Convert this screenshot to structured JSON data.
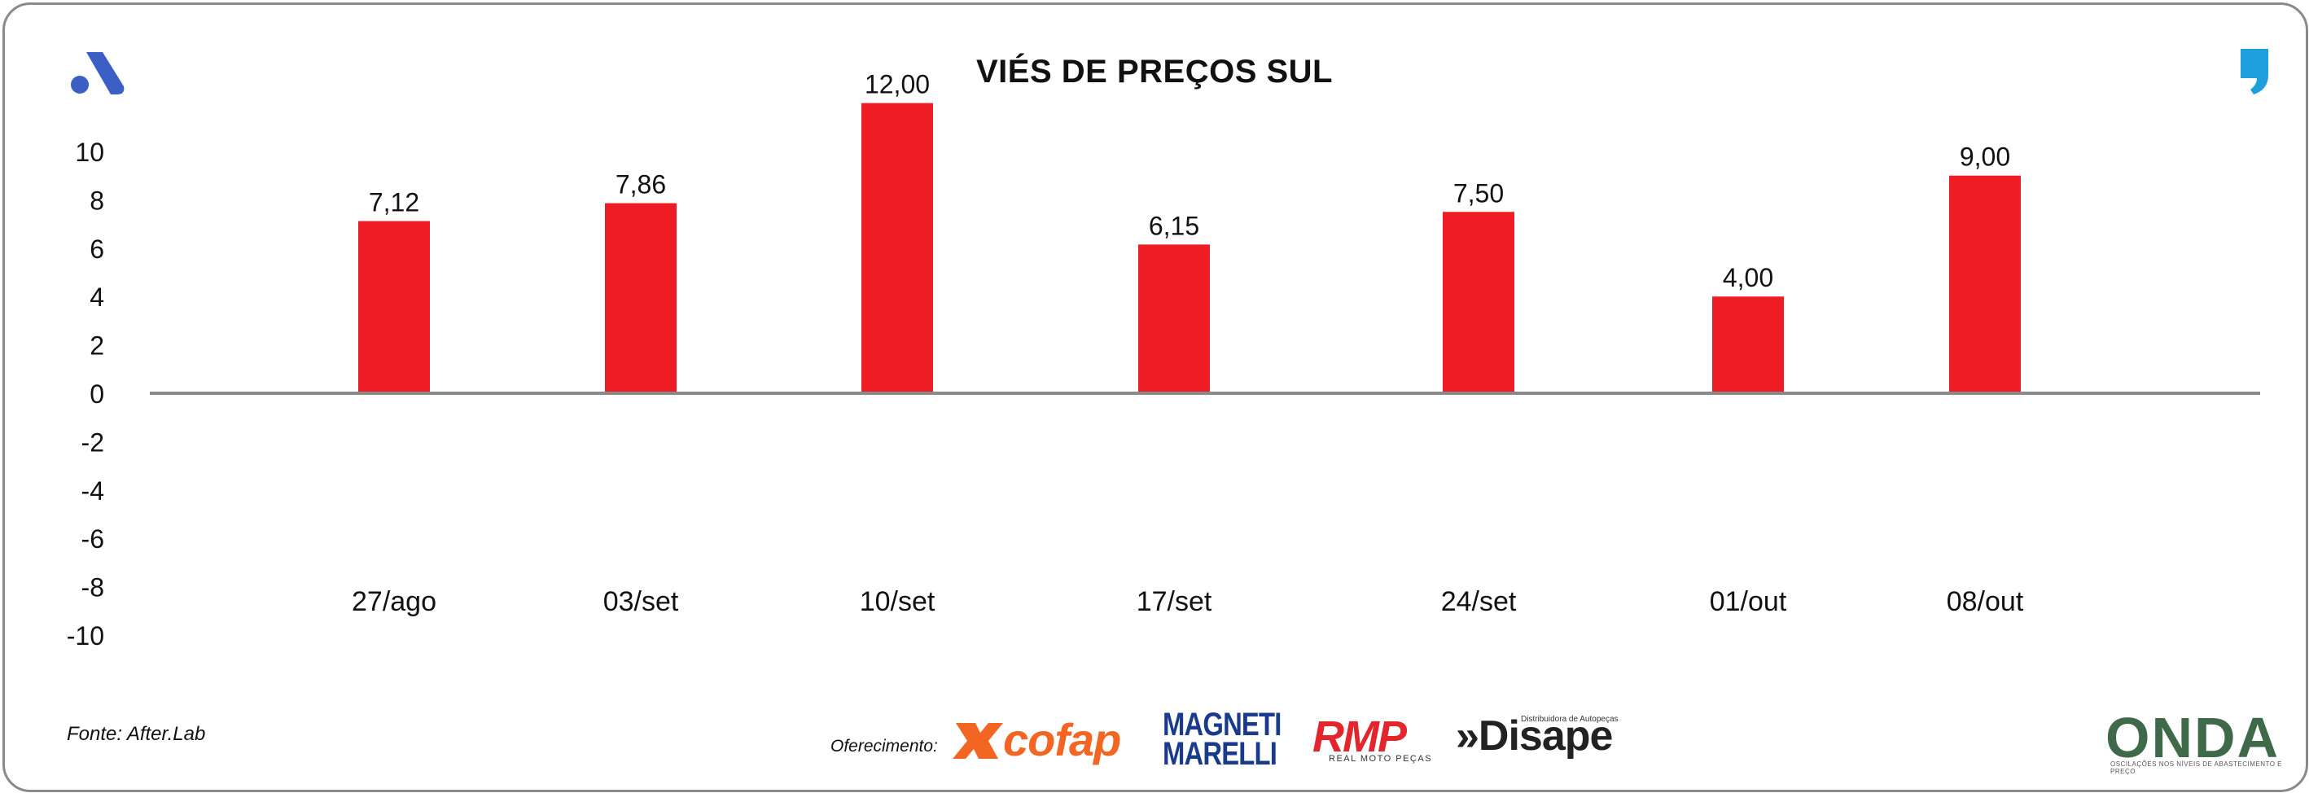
{
  "brand": {
    "left_logo_icon": "a-letter-logo-icon",
    "right_logo_icon": "comma-logo-icon",
    "left_logo_color": "#3b5fc4",
    "right_logo_color": "#1ea0dc"
  },
  "chart_data": {
    "type": "bar",
    "title": "VIÉS DE PREÇOS SUL",
    "categories": [
      "27/ago",
      "03/set",
      "10/set",
      "17/set",
      "24/set",
      "01/out",
      "08/out"
    ],
    "values": [
      7.12,
      7.86,
      12.0,
      6.15,
      7.5,
      4.0,
      9.0
    ],
    "value_labels": [
      "7,12",
      "7,86",
      "12,00",
      "6,15",
      "7,50",
      "4,00",
      "9,00"
    ],
    "y_ticks": [
      "10",
      "8",
      "6",
      "4",
      "2",
      "0",
      "-2",
      "-4",
      "-6",
      "-8",
      "-10"
    ],
    "ylim": [
      -10,
      10
    ],
    "bar_color": "#ee1c25",
    "grid": false,
    "legend": "none"
  },
  "footer": {
    "source": "Fonte: After.Lab",
    "sponsor_label": "Oferecimento:",
    "sponsors": {
      "cofap": "cofap",
      "magneti_marelli": "MAGNETI MARELLI",
      "rmp": "RMP",
      "rmp_sub": "REAL MOTO PEÇAS",
      "disape": "Disape",
      "disape_sub": "Distribuidora de Autopeças",
      "onda": "ONDA",
      "onda_sub": "OSCILAÇÕES NOS NÍVEIS DE ABASTECIMENTO E PREÇO"
    }
  }
}
